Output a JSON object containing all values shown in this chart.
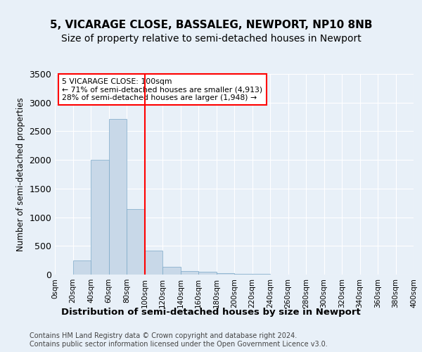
{
  "title": "5, VICARAGE CLOSE, BASSALEG, NEWPORT, NP10 8NB",
  "subtitle": "Size of property relative to semi-detached houses in Newport",
  "xlabel": "Distribution of semi-detached houses by size in Newport",
  "ylabel": "Number of semi-detached properties",
  "bin_labels": [
    "0sqm",
    "20sqm",
    "40sqm",
    "60sqm",
    "80sqm",
    "100sqm",
    "120sqm",
    "140sqm",
    "160sqm",
    "180sqm",
    "200sqm",
    "220sqm",
    "240sqm",
    "260sqm",
    "280sqm",
    "300sqm",
    "320sqm",
    "340sqm",
    "360sqm",
    "380sqm",
    "400sqm"
  ],
  "bar_heights": [
    0,
    250,
    2000,
    2720,
    1140,
    420,
    130,
    60,
    50,
    30,
    15,
    10,
    5,
    5,
    3,
    2,
    1,
    1,
    0,
    0
  ],
  "bar_color": "#c8d8e8",
  "bar_edgecolor": "#7aa8c8",
  "vline_x": 5,
  "vline_color": "red",
  "annotation_text": "5 VICARAGE CLOSE: 100sqm\n← 71% of semi-detached houses are smaller (4,913)\n28% of semi-detached houses are larger (1,948) →",
  "annotation_box_color": "white",
  "annotation_box_edgecolor": "red",
  "footnote": "Contains HM Land Registry data © Crown copyright and database right 2024.\nContains public sector information licensed under the Open Government Licence v3.0.",
  "ylim": [
    0,
    3500
  ],
  "background_color": "#e8f0f8",
  "title_fontsize": 11,
  "subtitle_fontsize": 10
}
